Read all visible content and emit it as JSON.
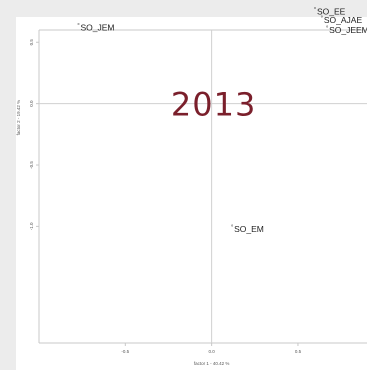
{
  "chart_data": {
    "type": "scatter",
    "title": "",
    "watermark": "2013",
    "xlabel": "factor 1 - 40.42 %",
    "ylabel": "factor 2 - 19.42 %",
    "xlim": [
      -1.0,
      0.9
    ],
    "ylim": [
      -1.95,
      0.6
    ],
    "x_ticks": [
      {
        "value": -0.5,
        "label": "-0.5"
      },
      {
        "value": 0.0,
        "label": "0.0"
      },
      {
        "value": 0.5,
        "label": "0.5"
      }
    ],
    "y_ticks": [
      {
        "value": 0.5,
        "label": "0.5"
      },
      {
        "value": 0.0,
        "label": "0.0"
      },
      {
        "value": -0.5,
        "label": "-0.5"
      },
      {
        "value": -1.0,
        "label": "-1.0"
      }
    ],
    "reference_lines": {
      "x": 0,
      "y": 0
    },
    "grid": false,
    "points": [
      {
        "label": "SO_JEM",
        "x": -0.78,
        "y": 0.62
      },
      {
        "label": "SO_EE",
        "x": 0.59,
        "y": 0.75
      },
      {
        "label": "SO_AJAE",
        "x": 0.63,
        "y": 0.68
      },
      {
        "label": "SO_JEEM",
        "x": 0.66,
        "y": 0.6
      },
      {
        "label": "SO_EM",
        "x": 0.11,
        "y": -1.02
      }
    ],
    "colors": {
      "points": "#555555",
      "labels": "#222222",
      "axes": "#c8c8c8",
      "watermark": "#7a1f2b"
    }
  }
}
